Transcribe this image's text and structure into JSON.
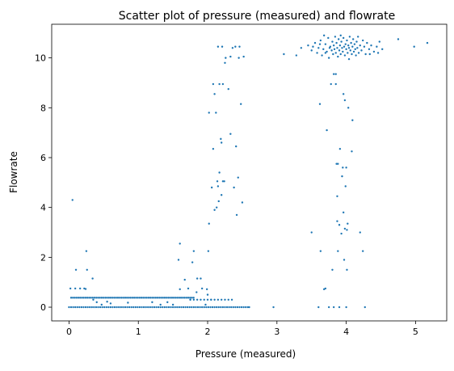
{
  "chart_data": {
    "type": "scatter",
    "title": "Scatter plot of pressure (measured) and flowrate",
    "xlabel": "Pressure (measured)",
    "ylabel": "Flowrate",
    "xlim": [
      -0.25,
      5.45
    ],
    "ylim": [
      -0.55,
      11.35
    ],
    "xticks": [
      "0",
      "1",
      "2",
      "3",
      "4",
      "5"
    ],
    "yticks": [
      "0",
      "2",
      "4",
      "6",
      "8",
      "10"
    ],
    "grid": false,
    "legend": "none",
    "marker_color": "#1f77b4",
    "points": [
      [
        0.02,
        0.75
      ],
      [
        0.05,
        4.3
      ],
      [
        0.1,
        1.5
      ],
      [
        0.09,
        0.75
      ],
      [
        0.16,
        0.75
      ],
      [
        0.22,
        0.75
      ],
      [
        0.25,
        2.25
      ],
      [
        0.26,
        1.5
      ],
      [
        0.34,
        1.15
      ],
      [
        0.24,
        0.73
      ],
      [
        0.35,
        0.3
      ],
      [
        0.4,
        0.2
      ],
      [
        0.47,
        0.1
      ],
      [
        0.55,
        0.22
      ],
      [
        0.6,
        0.15
      ],
      [
        0.85,
        0.18
      ],
      [
        1.2,
        0.2
      ],
      [
        1.32,
        0.1
      ],
      [
        1.42,
        0.2
      ],
      [
        1.5,
        0.1
      ],
      [
        1.6,
        2.55
      ],
      [
        1.58,
        1.9
      ],
      [
        1.6,
        0.72
      ],
      [
        1.67,
        1.1
      ],
      [
        1.72,
        0.75
      ],
      [
        1.75,
        0.3
      ],
      [
        1.78,
        1.8
      ],
      [
        1.8,
        2.25
      ],
      [
        1.84,
        0.6
      ],
      [
        1.85,
        1.15
      ],
      [
        1.9,
        1.15
      ],
      [
        1.92,
        0.75
      ],
      [
        1.97,
        0.1
      ],
      [
        1.99,
        0.72
      ],
      [
        2.0,
        0.5
      ],
      [
        2.01,
        2.25
      ],
      [
        2.02,
        3.35
      ],
      [
        2.02,
        7.8
      ],
      [
        2.05,
        0.3
      ],
      [
        2.06,
        4.8
      ],
      [
        2.08,
        6.35
      ],
      [
        2.08,
        8.95
      ],
      [
        2.1,
        3.9
      ],
      [
        2.1,
        8.55
      ],
      [
        2.12,
        7.8
      ],
      [
        2.13,
        4.0
      ],
      [
        2.14,
        5.05
      ],
      [
        2.15,
        4.85
      ],
      [
        2.15,
        10.45
      ],
      [
        2.16,
        4.25
      ],
      [
        2.17,
        5.4
      ],
      [
        2.17,
        8.95
      ],
      [
        2.19,
        6.75
      ],
      [
        2.2,
        4.5
      ],
      [
        2.2,
        6.6
      ],
      [
        2.21,
        10.45
      ],
      [
        2.22,
        5.05
      ],
      [
        2.22,
        8.95
      ],
      [
        2.24,
        5.05
      ],
      [
        2.25,
        9.8
      ],
      [
        2.26,
        10.0
      ],
      [
        2.3,
        8.75
      ],
      [
        2.33,
        6.95
      ],
      [
        2.33,
        10.05
      ],
      [
        2.36,
        10.4
      ],
      [
        2.38,
        4.8
      ],
      [
        2.4,
        10.45
      ],
      [
        2.41,
        6.45
      ],
      [
        2.42,
        3.7
      ],
      [
        2.44,
        5.2
      ],
      [
        2.45,
        10.0
      ],
      [
        2.46,
        10.45
      ],
      [
        2.48,
        8.15
      ],
      [
        2.5,
        4.2
      ],
      [
        2.52,
        10.05
      ],
      [
        2.6,
        0.0
      ],
      [
        2.95,
        0.0
      ],
      [
        3.1,
        10.15
      ],
      [
        3.28,
        10.1
      ],
      [
        3.5,
        3.0
      ],
      [
        3.6,
        0.0
      ],
      [
        3.62,
        8.15
      ],
      [
        3.63,
        2.25
      ],
      [
        3.68,
        0.72
      ],
      [
        3.7,
        0.75
      ],
      [
        3.72,
        7.1
      ],
      [
        3.75,
        0.0
      ],
      [
        3.78,
        8.95
      ],
      [
        3.8,
        1.5
      ],
      [
        3.82,
        9.35
      ],
      [
        3.82,
        0.0
      ],
      [
        3.85,
        9.35
      ],
      [
        3.85,
        8.95
      ],
      [
        3.86,
        5.75
      ],
      [
        3.87,
        3.45
      ],
      [
        3.87,
        4.45
      ],
      [
        3.88,
        5.75
      ],
      [
        3.88,
        2.25
      ],
      [
        3.9,
        3.3
      ],
      [
        3.9,
        0.0
      ],
      [
        3.91,
        6.35
      ],
      [
        3.93,
        2.95
      ],
      [
        3.94,
        5.25
      ],
      [
        3.95,
        5.6
      ],
      [
        3.96,
        3.8
      ],
      [
        3.96,
        8.55
      ],
      [
        3.97,
        1.9
      ],
      [
        3.98,
        8.3
      ],
      [
        3.98,
        3.15
      ],
      [
        3.99,
        4.85
      ],
      [
        4.0,
        5.6
      ],
      [
        4.0,
        0.0
      ],
      [
        4.01,
        3.1
      ],
      [
        4.01,
        1.5
      ],
      [
        4.02,
        3.35
      ],
      [
        4.03,
        8.0
      ],
      [
        4.08,
        6.25
      ],
      [
        4.09,
        7.5
      ],
      [
        4.2,
        3.0
      ],
      [
        4.24,
        2.25
      ],
      [
        4.27,
        0.0
      ],
      [
        4.75,
        10.75
      ],
      [
        4.98,
        10.45
      ],
      [
        5.17,
        10.6
      ],
      [
        3.35,
        10.4
      ],
      [
        3.45,
        10.5
      ],
      [
        3.5,
        10.3
      ],
      [
        3.55,
        10.6
      ],
      [
        3.58,
        10.2
      ],
      [
        3.6,
        10.4
      ],
      [
        3.63,
        10.7
      ],
      [
        3.65,
        10.1
      ],
      [
        3.67,
        10.35
      ],
      [
        3.7,
        10.55
      ],
      [
        3.72,
        10.25
      ],
      [
        3.74,
        10.8
      ],
      [
        3.75,
        10.0
      ],
      [
        3.77,
        10.45
      ],
      [
        3.79,
        10.3
      ],
      [
        3.8,
        10.65
      ],
      [
        3.81,
        10.15
      ],
      [
        3.82,
        10.5
      ],
      [
        3.83,
        10.35
      ],
      [
        3.84,
        10.85
      ],
      [
        3.85,
        10.2
      ],
      [
        3.86,
        10.6
      ],
      [
        3.87,
        10.4
      ],
      [
        3.88,
        10.05
      ],
      [
        3.89,
        10.75
      ],
      [
        3.9,
        10.3
      ],
      [
        3.91,
        10.5
      ],
      [
        3.92,
        10.15
      ],
      [
        3.93,
        10.65
      ],
      [
        3.94,
        10.4
      ],
      [
        3.95,
        10.25
      ],
      [
        3.96,
        10.8
      ],
      [
        3.97,
        10.45
      ],
      [
        3.98,
        10.1
      ],
      [
        3.99,
        10.55
      ],
      [
        4.0,
        10.35
      ],
      [
        4.01,
        10.7
      ],
      [
        4.02,
        10.2
      ],
      [
        4.03,
        10.5
      ],
      [
        4.04,
        10.4
      ],
      [
        4.05,
        10.85
      ],
      [
        4.06,
        10.3
      ],
      [
        4.07,
        10.6
      ],
      [
        4.08,
        10.15
      ],
      [
        4.09,
        10.45
      ],
      [
        4.1,
        10.75
      ],
      [
        4.11,
        10.25
      ],
      [
        4.12,
        10.55
      ],
      [
        4.13,
        10.35
      ],
      [
        4.14,
        10.1
      ],
      [
        4.15,
        10.65
      ],
      [
        4.16,
        10.4
      ],
      [
        4.18,
        10.2
      ],
      [
        4.2,
        10.5
      ],
      [
        4.22,
        10.3
      ],
      [
        4.24,
        10.7
      ],
      [
        4.26,
        10.45
      ],
      [
        4.28,
        10.15
      ],
      [
        4.3,
        10.6
      ],
      [
        4.33,
        10.35
      ],
      [
        4.36,
        10.5
      ],
      [
        4.4,
        10.25
      ],
      [
        4.44,
        10.45
      ],
      [
        4.48,
        10.65
      ],
      [
        4.52,
        10.35
      ],
      [
        3.52,
        10.45
      ],
      [
        3.62,
        10.55
      ],
      [
        3.7,
        10.2
      ],
      [
        3.76,
        10.4
      ],
      [
        3.92,
        10.9
      ],
      [
        4.04,
        9.95
      ],
      [
        4.17,
        10.85
      ],
      [
        4.34,
        10.15
      ],
      [
        3.68,
        10.9
      ],
      [
        4.46,
        10.2
      ]
    ]
  }
}
